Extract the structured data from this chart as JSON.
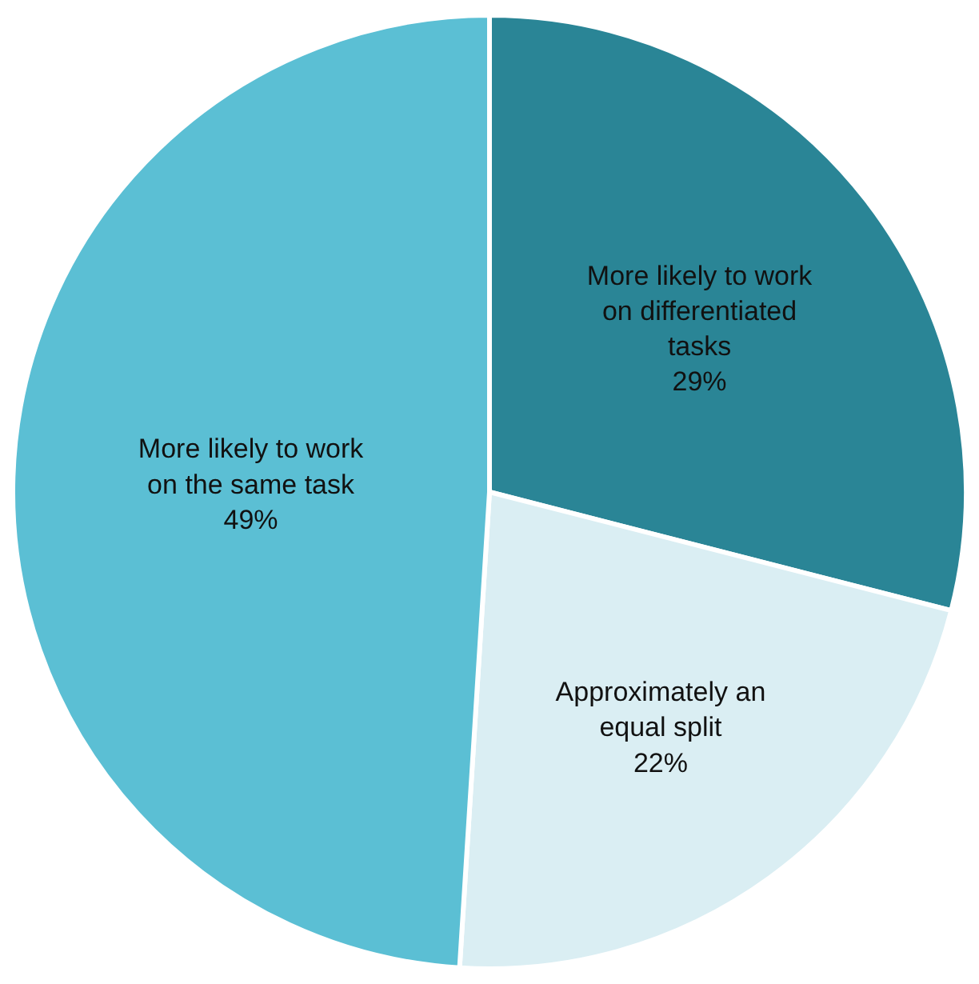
{
  "chart_data": {
    "type": "pie",
    "categories": [
      "More likely to work on differentiated tasks",
      "Approximately an equal split",
      "More likely to work on the same task"
    ],
    "values": [
      29,
      22,
      49
    ],
    "value_labels": [
      "29%",
      "22%",
      "49%"
    ],
    "colors": [
      "#2a8596",
      "#daeef3",
      "#5bbfd4"
    ],
    "legend": false
  }
}
